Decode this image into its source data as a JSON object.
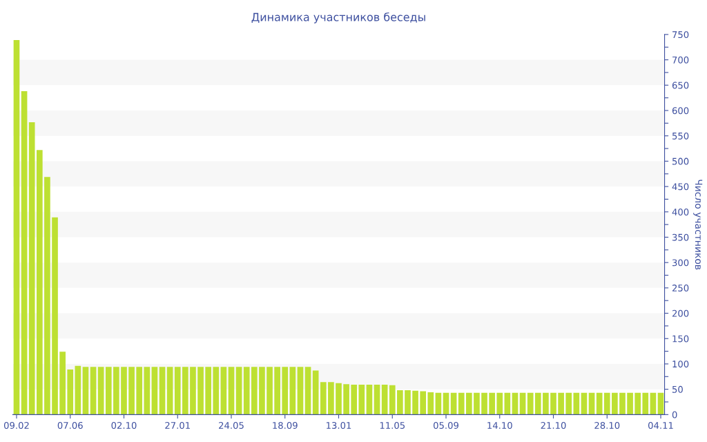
{
  "chart_data": {
    "type": "bar",
    "title": "Динамика участников беседы",
    "ylabel": "Число участников",
    "categories": [
      "09.02",
      null,
      null,
      null,
      null,
      null,
      null,
      "07.06",
      null,
      null,
      null,
      null,
      null,
      null,
      "02.10",
      null,
      null,
      null,
      null,
      null,
      null,
      "27.01",
      null,
      null,
      null,
      null,
      null,
      null,
      "24.05",
      null,
      null,
      null,
      null,
      null,
      null,
      "18.09",
      null,
      null,
      null,
      null,
      null,
      null,
      "13.01",
      null,
      null,
      null,
      null,
      null,
      null,
      "11.05",
      null,
      null,
      null,
      null,
      null,
      null,
      "05.09",
      null,
      null,
      null,
      null,
      null,
      null,
      "14.10",
      null,
      null,
      null,
      null,
      null,
      null,
      "21.10",
      null,
      null,
      null,
      null,
      null,
      null,
      "28.10",
      null,
      null,
      null,
      null,
      null,
      null,
      "04.11"
    ],
    "values": [
      739,
      638,
      577,
      522,
      469,
      389,
      124,
      89,
      96,
      94,
      94,
      94,
      94,
      94,
      94,
      94,
      94,
      94,
      94,
      94,
      94,
      94,
      94,
      94,
      94,
      94,
      94,
      94,
      94,
      94,
      94,
      94,
      94,
      94,
      94,
      94,
      94,
      94,
      94,
      87,
      64,
      64,
      62,
      60,
      59,
      59,
      59,
      59,
      59,
      58,
      48,
      48,
      47,
      46,
      44,
      43,
      43,
      43,
      43,
      43,
      43,
      43,
      43,
      43,
      43,
      43,
      43,
      43,
      43,
      43,
      43,
      43,
      43,
      43,
      43,
      43,
      43,
      43,
      43,
      43,
      43,
      43,
      43,
      43,
      43
    ],
    "color": "#bde032",
    "ylim": [
      0,
      750
    ],
    "yticks": [
      0,
      {
        "value": 25,
        "label": null
      },
      50,
      {
        "value": 75,
        "label": null
      },
      100,
      {
        "value": 125,
        "label": null
      },
      150,
      {
        "value": 175,
        "label": null
      },
      200,
      {
        "value": 225,
        "label": null
      },
      250,
      {
        "value": 275,
        "label": null
      },
      300,
      {
        "value": 325,
        "label": null
      },
      350,
      {
        "value": 375,
        "label": null
      },
      400,
      {
        "value": 425,
        "label": null
      },
      450,
      {
        "value": 475,
        "label": null
      },
      500,
      {
        "value": 525,
        "label": null
      },
      550,
      {
        "value": 575,
        "label": null
      },
      600,
      {
        "value": 625,
        "label": null
      },
      650,
      {
        "value": 675,
        "label": null
      },
      700,
      {
        "value": 725,
        "label": null
      },
      750
    ],
    "bands": [
      {
        "axis": "y",
        "from": 50,
        "to": 100,
        "color": "#f7f7f7"
      },
      {
        "axis": "y",
        "from": 150,
        "to": 200,
        "color": "#f7f7f7"
      },
      {
        "axis": "y",
        "from": 250,
        "to": 300,
        "color": "#f7f7f7"
      },
      {
        "axis": "y",
        "from": 350,
        "to": 400,
        "color": "#f7f7f7"
      },
      {
        "axis": "y",
        "from": 450,
        "to": 500,
        "color": "#f7f7f7"
      },
      {
        "axis": "y",
        "from": 550,
        "to": 600,
        "color": "#f7f7f7"
      },
      {
        "axis": "y",
        "from": 650,
        "to": 700,
        "color": "#f7f7f7"
      }
    ],
    "grid": false,
    "legend": false
  }
}
